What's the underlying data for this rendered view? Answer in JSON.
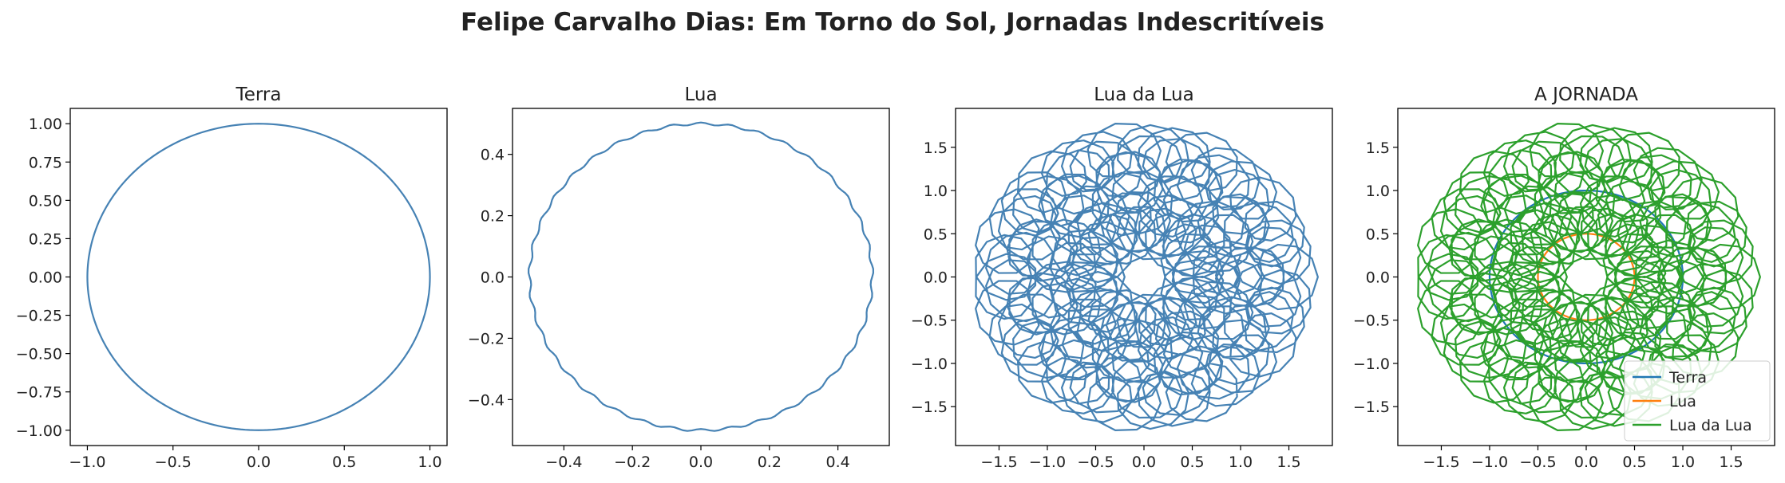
{
  "figure_title": "Felipe Carvalho Dias: Em Torno do Sol, Jornadas Indescritíveis",
  "colors": {
    "terra": "#4682b4",
    "lua_panel": "#4682b4",
    "lua_da_lua_panel": "#4682b4",
    "jornada_terra": "#1f77b4",
    "jornada_lua": "#ff7f0e",
    "jornada_lua_da_lua": "#2ca02c"
  },
  "chart_data": [
    {
      "type": "line",
      "title": "Terra",
      "xlim": [
        -1.1,
        1.1
      ],
      "ylim": [
        -1.1,
        1.1
      ],
      "xticks": [
        "−1.0",
        "−0.5",
        "0.0",
        "0.5",
        "1.0"
      ],
      "yticks": [
        "−1.00",
        "−0.75",
        "−0.50",
        "−0.25",
        "0.00",
        "0.25",
        "0.50",
        "0.75",
        "1.00"
      ],
      "series": [
        {
          "curve": "circle",
          "radius": 1.0,
          "color": "#4682b4"
        }
      ],
      "legend": null
    },
    {
      "type": "line",
      "title": "Lua",
      "xlim": [
        -0.55,
        0.55
      ],
      "ylim": [
        -0.55,
        0.55
      ],
      "xticks": [
        "−0.4",
        "−0.2",
        "0.0",
        "0.2",
        "0.4"
      ],
      "yticks": [
        "−0.4",
        "−0.2",
        "0.0",
        "0.2",
        "0.4"
      ],
      "series": [
        {
          "curve": "circle",
          "radius": 0.5,
          "color": "#4682b4",
          "jitter": 0.004
        }
      ],
      "legend": null
    },
    {
      "type": "line",
      "title": "Lua da Lua",
      "xlim": [
        -1.95,
        1.95
      ],
      "ylim": [
        -1.95,
        1.95
      ],
      "xticks": [
        "−1.5",
        "−1.0",
        "−0.5",
        "0.0",
        "0.5",
        "1.0",
        "1.5"
      ],
      "yticks": [
        "−1.5",
        "−1.0",
        "−0.5",
        "0.0",
        "0.5",
        "1.0",
        "1.5"
      ],
      "series": [
        {
          "curve": "epicycle",
          "r1": 1.0,
          "k1": 1,
          "r2": 0.5,
          "k2": 12,
          "r3": 0.3,
          "k3": 144,
          "color": "#4682b4"
        }
      ],
      "legend": null
    },
    {
      "type": "line",
      "title": "A JORNADA",
      "xlim": [
        -1.95,
        1.95
      ],
      "ylim": [
        -1.95,
        1.95
      ],
      "xticks": [
        "−1.5",
        "−1.0",
        "−0.5",
        "0.0",
        "0.5",
        "1.0",
        "1.5"
      ],
      "yticks": [
        "−1.5",
        "−1.0",
        "−0.5",
        "0.0",
        "0.5",
        "1.0",
        "1.5"
      ],
      "series": [
        {
          "name": "Terra",
          "curve": "circle",
          "radius": 1.0,
          "color": "#1f77b4"
        },
        {
          "name": "Lua",
          "curve": "circle",
          "radius": 0.5,
          "color": "#ff7f0e"
        },
        {
          "name": "Lua da Lua",
          "curve": "epicycle",
          "r1": 1.0,
          "k1": 1,
          "r2": 0.5,
          "k2": 12,
          "r3": 0.3,
          "k3": 144,
          "color": "#2ca02c"
        }
      ],
      "legend": "lower right"
    }
  ]
}
